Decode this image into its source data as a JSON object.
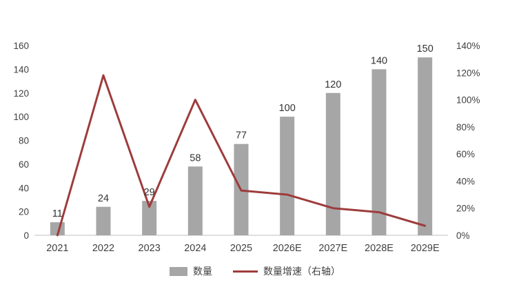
{
  "chart_data": {
    "type": "bar",
    "subtype": "bar+line combo",
    "categories": [
      "2021",
      "2022",
      "2023",
      "2024",
      "2025",
      "2026E",
      "2027E",
      "2028E",
      "2029E"
    ],
    "series": [
      {
        "name": "数量",
        "type": "bar",
        "axis": "left",
        "values": [
          11,
          24,
          29,
          58,
          77,
          100,
          120,
          140,
          150
        ],
        "color": "#a6a6a6"
      },
      {
        "name": "数量增速（右轴）",
        "type": "line",
        "axis": "right",
        "values_pct": [
          0,
          118,
          21,
          100,
          33,
          30,
          20,
          17,
          7
        ],
        "color": "#9e3b3b"
      }
    ],
    "left_axis": {
      "min": 0,
      "max": 160,
      "ticks": [
        "0",
        "20",
        "40",
        "60",
        "80",
        "100",
        "120",
        "140",
        "160"
      ]
    },
    "right_axis": {
      "min": 0,
      "max": 140,
      "ticks": [
        "0%",
        "20%",
        "40%",
        "60%",
        "80%",
        "100%",
        "120%",
        "140%"
      ]
    },
    "grid": false,
    "legend_position": "bottom",
    "legend": [
      {
        "label": "数量"
      },
      {
        "label": "数量增速（右轴）"
      }
    ],
    "title": "",
    "xlabel": "",
    "ylabel": ""
  },
  "colors": {
    "bar": "#a6a6a6",
    "line": "#9e3b3b",
    "text": "#404040",
    "axis_line": "#bfbfbf"
  }
}
